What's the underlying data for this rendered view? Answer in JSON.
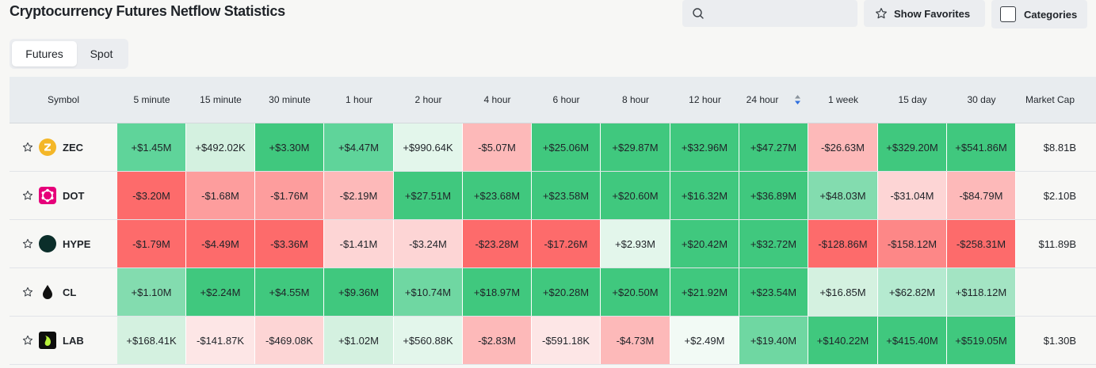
{
  "page": {
    "title": "Cryptocurrency Futures Netflow Statistics"
  },
  "search": {
    "placeholder": ""
  },
  "toolbar": {
    "favorites_label": "Show Favorites",
    "categories_label": "Categories"
  },
  "tabs": [
    {
      "label": "Futures",
      "active": true
    },
    {
      "label": "Spot",
      "active": false
    }
  ],
  "table": {
    "columns": [
      "Symbol",
      "5 minute",
      "15 minute",
      "30 minute",
      "1 hour",
      "2 hour",
      "4 hour",
      "6 hour",
      "8 hour",
      "12 hour",
      "24 hour",
      "1 week",
      "15 day",
      "30 day",
      "Market Cap"
    ],
    "sorted_column": "24 hour",
    "rows": [
      {
        "symbol": "ZEC",
        "icon": "zec-coin-icon",
        "icon_color": "#f4b728",
        "values": [
          "+$1.45M",
          "+$492.02K",
          "+$3.30M",
          "+$4.47M",
          "+$990.64K",
          "-$5.07M",
          "+$25.06M",
          "+$29.87M",
          "+$32.96M",
          "+$47.27M",
          "-$26.63M",
          "+$329.20M",
          "+$541.86M"
        ],
        "colors": [
          "#5fd49a",
          "#d4f1e0",
          "#40c87e",
          "#5fd49a",
          "#e3f6eb",
          "#fdb9b9",
          "#40c87e",
          "#40c87e",
          "#40c87e",
          "#40c87e",
          "#fdb9b9",
          "#40c87e",
          "#40c87e"
        ],
        "market_cap": "$8.81B"
      },
      {
        "symbol": "DOT",
        "icon": "dot-coin-icon",
        "icon_color": "#e6007a",
        "values": [
          "-$3.20M",
          "-$1.68M",
          "-$1.76M",
          "-$2.19M",
          "+$27.51M",
          "+$23.68M",
          "+$23.58M",
          "+$20.60M",
          "+$16.32M",
          "+$36.89M",
          "+$48.03M",
          "-$31.04M",
          "-$84.79M"
        ],
        "colors": [
          "#fd6b6b",
          "#fd9d9d",
          "#fd9d9d",
          "#fdb9b9",
          "#40c87e",
          "#40c87e",
          "#40c87e",
          "#40c87e",
          "#40c87e",
          "#40c87e",
          "#83dcaf",
          "#fdd5d5",
          "#fdb9b9"
        ],
        "market_cap": "$2.10B"
      },
      {
        "symbol": "HYPE",
        "icon": "hype-coin-icon",
        "icon_color": "#0b2e2a",
        "values": [
          "-$1.79M",
          "-$4.49M",
          "-$3.36M",
          "-$1.41M",
          "-$3.24M",
          "-$23.28M",
          "-$17.26M",
          "+$2.93M",
          "+$20.42M",
          "+$32.72M",
          "-$128.86M",
          "-$158.12M",
          "-$258.31M"
        ],
        "colors": [
          "#fd6b6b",
          "#fd6b6b",
          "#fd6b6b",
          "#fdd5d5",
          "#fdd5d5",
          "#fd6b6b",
          "#fd6b6b",
          "#e3f6eb",
          "#40c87e",
          "#40c87e",
          "#fd6b6b",
          "#fd8787",
          "#fd6b6b"
        ],
        "market_cap": "$11.89B"
      },
      {
        "symbol": "CL",
        "icon": "oil-drop-icon",
        "icon_color": "#111111",
        "values": [
          "+$1.10M",
          "+$2.24M",
          "+$4.55M",
          "+$9.36M",
          "+$10.74M",
          "+$18.97M",
          "+$20.28M",
          "+$20.50M",
          "+$21.92M",
          "+$23.54M",
          "+$16.85M",
          "+$62.82M",
          "+$118.12M"
        ],
        "colors": [
          "#83dcaf",
          "#40c87e",
          "#40c87e",
          "#40c87e",
          "#6fd7a2",
          "#40c87e",
          "#40c87e",
          "#40c87e",
          "#40c87e",
          "#40c87e",
          "#d4f1e0",
          "#b5ead0",
          "#a3e4c3"
        ],
        "market_cap": ""
      },
      {
        "symbol": "LAB",
        "icon": "lab-coin-icon",
        "icon_color": "#0d0d0d",
        "values": [
          "+$168.41K",
          "-$141.87K",
          "-$469.08K",
          "+$1.02M",
          "+$560.88K",
          "-$2.83M",
          "-$591.18K",
          "-$4.73M",
          "+$2.49M",
          "+$19.40M",
          "+$140.22M",
          "+$415.40M",
          "+$519.05M"
        ],
        "colors": [
          "#d4f1e0",
          "#fde6e6",
          "#fdd5d5",
          "#d4f1e0",
          "#e3f6eb",
          "#fdb9b9",
          "#fde6e6",
          "#fdb9b9",
          "#f2faf5",
          "#6fd7a2",
          "#40c87e",
          "#40c87e",
          "#40c87e"
        ],
        "market_cap": "$1.30B"
      }
    ]
  }
}
